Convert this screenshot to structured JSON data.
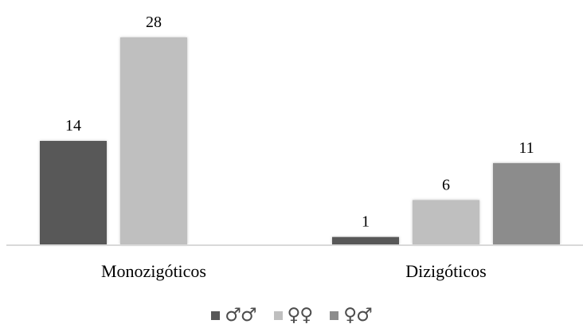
{
  "chart_data": {
    "type": "bar",
    "categories": [
      "Monozigóticos",
      "Dizigóticos"
    ],
    "series": [
      {
        "name": "♂♂",
        "values": [
          14,
          1
        ],
        "color": "#595959"
      },
      {
        "name": "♀♀",
        "values": [
          28,
          6
        ],
        "color": "#bfbfbf"
      },
      {
        "name": "♀♂",
        "values": [
          null,
          11
        ],
        "color": "#8c8c8c"
      }
    ],
    "ylim": [
      0,
      28
    ],
    "grid": false,
    "legend_position": "bottom",
    "data_labels": true
  }
}
